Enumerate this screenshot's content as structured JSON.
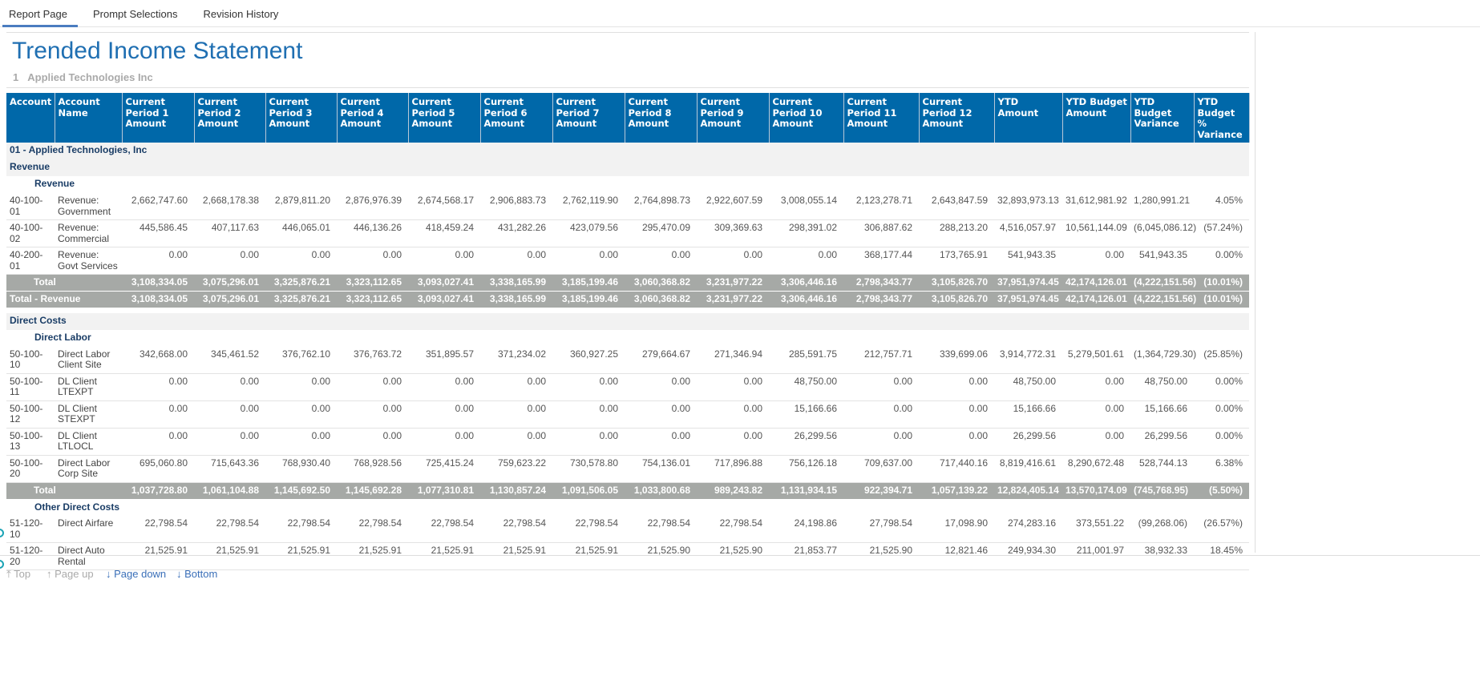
{
  "tabs": [
    {
      "label": "Report Page",
      "active": true
    },
    {
      "label": "Prompt Selections"
    },
    {
      "label": "Revision History"
    }
  ],
  "report": {
    "title": "Trended Income Statement",
    "entity_num": "1",
    "entity_name": "Applied Technologies Inc"
  },
  "columns": [
    "Account",
    "Account Name",
    "Current Period 1 Amount",
    "Current Period 2 Amount",
    "Current Period 3 Amount",
    "Current Period 4 Amount",
    "Current Period 5 Amount",
    "Current Period 6 Amount",
    "Current Period 7 Amount",
    "Current Period 8 Amount",
    "Current Period 9 Amount",
    "Current Period 10 Amount",
    "Current Period 11 Amount",
    "Current Period 12 Amount",
    "YTD Amount",
    "YTD Budget Amount",
    "YTD Budget Variance",
    "YTD Budget % Variance"
  ],
  "rows": [
    {
      "type": "sec",
      "label": "01  - Applied Technologies, Inc"
    },
    {
      "type": "sec",
      "label": "Revenue"
    },
    {
      "type": "sec2",
      "label": "Revenue",
      "white": true
    },
    {
      "type": "data",
      "account": "40-100-01",
      "name": "Revenue: Government",
      "values": [
        "2,662,747.60",
        "2,668,178.38",
        "2,879,811.20",
        "2,876,976.39",
        "2,674,568.17",
        "2,906,883.73",
        "2,762,119.90",
        "2,764,898.73",
        "2,922,607.59",
        "3,008,055.14",
        "2,123,278.71",
        "2,643,847.59",
        "32,893,973.13",
        "31,612,981.92",
        "1,280,991.21",
        "4.05%"
      ]
    },
    {
      "type": "data",
      "account": "40-100-02",
      "name": "Revenue: Commercial",
      "values": [
        "445,586.45",
        "407,117.63",
        "446,065.01",
        "446,136.26",
        "418,459.24",
        "431,282.26",
        "423,079.56",
        "295,470.09",
        "309,369.63",
        "298,391.02",
        "306,887.62",
        "288,213.20",
        "4,516,057.97",
        "10,561,144.09",
        "(6,045,086.12)",
        "(57.24%)"
      ]
    },
    {
      "type": "data",
      "account": "40-200-01",
      "name": "Revenue: Govt Services",
      "values": [
        "0.00",
        "0.00",
        "0.00",
        "0.00",
        "0.00",
        "0.00",
        "0.00",
        "0.00",
        "0.00",
        "0.00",
        "368,177.44",
        "173,765.91",
        "541,943.35",
        "0.00",
        "541,943.35",
        "0.00%"
      ]
    },
    {
      "type": "tot",
      "label": "Total",
      "values": [
        "3,108,334.05",
        "3,075,296.01",
        "3,325,876.21",
        "3,323,112.65",
        "3,093,027.41",
        "3,338,165.99",
        "3,185,199.46",
        "3,060,368.82",
        "3,231,977.22",
        "3,306,446.16",
        "2,798,343.77",
        "3,105,826.70",
        "37,951,974.45",
        "42,174,126.01",
        "(4,222,151.56)",
        "(10.01%)"
      ]
    },
    {
      "type": "tot2",
      "label": "Total - Revenue",
      "values": [
        "3,108,334.05",
        "3,075,296.01",
        "3,325,876.21",
        "3,323,112.65",
        "3,093,027.41",
        "3,338,165.99",
        "3,185,199.46",
        "3,060,368.82",
        "3,231,977.22",
        "3,306,446.16",
        "2,798,343.77",
        "3,105,826.70",
        "37,951,974.45",
        "42,174,126.01",
        "(4,222,151.56)",
        "(10.01%)"
      ]
    },
    {
      "type": "gap"
    },
    {
      "type": "sec",
      "label": "Direct Costs"
    },
    {
      "type": "sec2",
      "label": "Direct Labor",
      "white": true
    },
    {
      "type": "data",
      "account": "50-100-10",
      "name": "Direct Labor Client Site",
      "values": [
        "342,668.00",
        "345,461.52",
        "376,762.10",
        "376,763.72",
        "351,895.57",
        "371,234.02",
        "360,927.25",
        "279,664.67",
        "271,346.94",
        "285,591.75",
        "212,757.71",
        "339,699.06",
        "3,914,772.31",
        "5,279,501.61",
        "(1,364,729.30)",
        "(25.85%)"
      ]
    },
    {
      "type": "data",
      "account": "50-100-11",
      "name": "DL Client LTEXPT",
      "values": [
        "0.00",
        "0.00",
        "0.00",
        "0.00",
        "0.00",
        "0.00",
        "0.00",
        "0.00",
        "0.00",
        "48,750.00",
        "0.00",
        "0.00",
        "48,750.00",
        "0.00",
        "48,750.00",
        "0.00%"
      ]
    },
    {
      "type": "data",
      "account": "50-100-12",
      "name": "DL Client STEXPT",
      "values": [
        "0.00",
        "0.00",
        "0.00",
        "0.00",
        "0.00",
        "0.00",
        "0.00",
        "0.00",
        "0.00",
        "15,166.66",
        "0.00",
        "0.00",
        "15,166.66",
        "0.00",
        "15,166.66",
        "0.00%"
      ]
    },
    {
      "type": "data",
      "account": "50-100-13",
      "name": "DL Client LTLOCL",
      "values": [
        "0.00",
        "0.00",
        "0.00",
        "0.00",
        "0.00",
        "0.00",
        "0.00",
        "0.00",
        "0.00",
        "26,299.56",
        "0.00",
        "0.00",
        "26,299.56",
        "0.00",
        "26,299.56",
        "0.00%"
      ]
    },
    {
      "type": "data",
      "account": "50-100-20",
      "name": "Direct Labor Corp Site",
      "values": [
        "695,060.80",
        "715,643.36",
        "768,930.40",
        "768,928.56",
        "725,415.24",
        "759,623.22",
        "730,578.80",
        "754,136.01",
        "717,896.88",
        "756,126.18",
        "709,637.00",
        "717,440.16",
        "8,819,416.61",
        "8,290,672.48",
        "528,744.13",
        "6.38%"
      ]
    },
    {
      "type": "tot",
      "label": "Total",
      "values": [
        "1,037,728.80",
        "1,061,104.88",
        "1,145,692.50",
        "1,145,692.28",
        "1,077,310.81",
        "1,130,857.24",
        "1,091,506.05",
        "1,033,800.68",
        "989,243.82",
        "1,131,934.15",
        "922,394.71",
        "1,057,139.22",
        "12,824,405.14",
        "13,570,174.09",
        "(745,768.95)",
        "(5.50%)"
      ]
    },
    {
      "type": "sec2",
      "label": "Other Direct Costs",
      "white": true
    },
    {
      "type": "data",
      "single": true,
      "account": "51-120-10",
      "name": "Direct Airfare",
      "values": [
        "22,798.54",
        "22,798.54",
        "22,798.54",
        "22,798.54",
        "22,798.54",
        "22,798.54",
        "22,798.54",
        "22,798.54",
        "22,798.54",
        "24,198.86",
        "27,798.54",
        "17,098.90",
        "274,283.16",
        "373,551.22",
        "(99,268.06)",
        "(26.57%)"
      ]
    },
    {
      "type": "data",
      "account": "51-120-20",
      "name": "Direct Auto Rental",
      "values": [
        "21,525.91",
        "21,525.91",
        "21,525.91",
        "21,525.91",
        "21,525.91",
        "21,525.91",
        "21,525.91",
        "21,525.90",
        "21,525.90",
        "21,853.77",
        "21,525.90",
        "12,821.46",
        "249,934.30",
        "211,001.97",
        "38,932.33",
        "18.45%"
      ]
    }
  ],
  "pager": {
    "top": "⤒ Top",
    "page_up": "↑ Page up",
    "page_down": "↓ Page down",
    "bottom": "↓ Bottom"
  }
}
